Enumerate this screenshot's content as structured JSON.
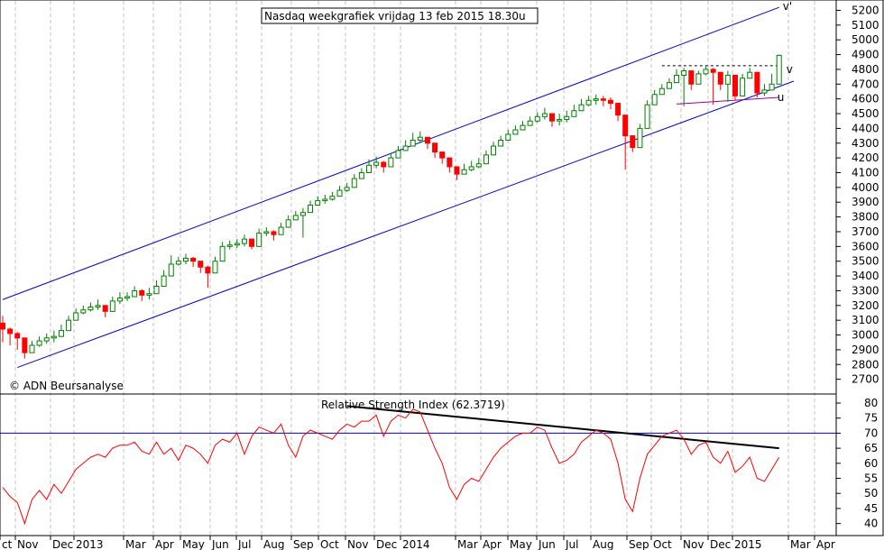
{
  "chart_data": [
    {
      "type": "candlestick",
      "title": "Nasdaq weekgrafiek vrijdag 13 feb 2015 18.30u",
      "credit": "© ADN Beursanalyse",
      "ylim": [
        2600,
        5270
      ],
      "y_ticks": [
        2700,
        2800,
        2900,
        3000,
        3100,
        3200,
        3300,
        3400,
        3500,
        3600,
        3700,
        3800,
        3900,
        4000,
        4100,
        4200,
        4300,
        4400,
        4500,
        4600,
        4700,
        4800,
        4900,
        5000,
        5100,
        5200
      ],
      "y_tick_labels": [
        "2700",
        "2800",
        "2900",
        "3000",
        "3100",
        "3200",
        "3300",
        "3400",
        "3500",
        "3600",
        "3700",
        "3800",
        "3900",
        "4000",
        "4100",
        "4200",
        "4300",
        "4400",
        "4500",
        "4600",
        "4700",
        "4800",
        "4900",
        "5000",
        "5100",
        "5200"
      ],
      "x_tick_labels": [
        "ct",
        "Nov",
        "Dec",
        "2013",
        "Mar",
        "Apr",
        "May",
        "Jun",
        "Jul",
        "Aug",
        "Sep",
        "Oct",
        "Nov",
        "Dec",
        "2014",
        "Mar",
        "Apr",
        "May",
        "Jun",
        "Jul",
        "Aug",
        "Sep",
        "Oct",
        "Nov",
        "Dec",
        "2015",
        "Mar",
        "Apr"
      ],
      "colors": {
        "up": "#008000",
        "down": "#ff0000",
        "channel": "#0000cc",
        "support_u": "#990099",
        "grid": "#c0c0c0"
      },
      "close_series": {
        "name": "Nasdaq",
        "values": [
          3040,
          3010,
          2980,
          2880,
          2930,
          2960,
          2980,
          2990,
          3030,
          3100,
          3150,
          3170,
          3190,
          3200,
          3160,
          3230,
          3250,
          3260,
          3300,
          3270,
          3280,
          3330,
          3400,
          3480,
          3500,
          3520,
          3500,
          3460,
          3420,
          3500,
          3600,
          3610,
          3620,
          3650,
          3600,
          3690,
          3700,
          3680,
          3730,
          3780,
          3810,
          3830,
          3880,
          3910,
          3920,
          3940,
          3980,
          4000,
          4060,
          4100,
          4150,
          4170,
          4140,
          4200,
          4250,
          4280,
          4320,
          4340,
          4300,
          4240,
          4200,
          4140,
          4090,
          4120,
          4140,
          4160,
          4220,
          4280,
          4320,
          4360,
          4390,
          4420,
          4450,
          4480,
          4500,
          4450,
          4460,
          4480,
          4520,
          4560,
          4590,
          4600,
          4590,
          4570,
          4490,
          4350,
          4270,
          4400,
          4560,
          4630,
          4670,
          4710,
          4760,
          4790,
          4700,
          4770,
          4800,
          4780,
          4700,
          4760,
          4620,
          4740,
          4780,
          4640,
          4660,
          4700,
          4895
        ],
        "lows": [
          2950,
          2930,
          2900,
          2840,
          2880,
          2920,
          2940,
          2950,
          2990,
          3060,
          3110,
          3140,
          3160,
          3170,
          3120,
          3200,
          3210,
          3230,
          3260,
          3230,
          3240,
          3300,
          3370,
          3440,
          3470,
          3480,
          3460,
          3420,
          3320,
          3450,
          3560,
          3580,
          3590,
          3600,
          3580,
          3650,
          3670,
          3640,
          3700,
          3740,
          3780,
          3660,
          3850,
          3880,
          3890,
          3910,
          3940,
          3970,
          4030,
          4070,
          4110,
          4130,
          4100,
          4160,
          4210,
          4250,
          4280,
          4300,
          4260,
          4200,
          4160,
          4100,
          4050,
          4090,
          4110,
          4130,
          4180,
          4240,
          4290,
          4330,
          4360,
          4390,
          4420,
          4440,
          4460,
          4410,
          4420,
          4440,
          4490,
          4520,
          4550,
          4560,
          4550,
          4530,
          4450,
          4120,
          4240,
          4370,
          4520,
          4600,
          4640,
          4670,
          4720,
          4550,
          4660,
          4730,
          4760,
          4560,
          4660,
          4580,
          4590,
          4700,
          4740,
          4610,
          4620,
          4670,
          4720
        ],
        "highs": [
          3130,
          3050,
          3020,
          2960,
          2960,
          2990,
          3010,
          3030,
          3070,
          3130,
          3180,
          3200,
          3220,
          3240,
          3200,
          3260,
          3290,
          3290,
          3330,
          3310,
          3320,
          3370,
          3440,
          3540,
          3530,
          3550,
          3530,
          3500,
          3470,
          3530,
          3630,
          3640,
          3650,
          3680,
          3640,
          3720,
          3730,
          3710,
          3760,
          3810,
          3840,
          3860,
          3910,
          3940,
          3950,
          3970,
          4010,
          4030,
          4090,
          4130,
          4190,
          4210,
          4180,
          4230,
          4280,
          4320,
          4370,
          4380,
          4340,
          4290,
          4240,
          4190,
          4140,
          4160,
          4180,
          4200,
          4250,
          4310,
          4350,
          4390,
          4420,
          4450,
          4480,
          4510,
          4540,
          4490,
          4500,
          4520,
          4560,
          4600,
          4620,
          4630,
          4620,
          4610,
          4540,
          4400,
          4320,
          4430,
          4590,
          4660,
          4700,
          4740,
          4800,
          4810,
          4790,
          4790,
          4820,
          4810,
          4760,
          4790,
          4680,
          4770,
          4810,
          4720,
          4700,
          4770,
          4900
        ]
      },
      "channel_upper": {
        "label": "v'",
        "x": [
          0,
          106
        ],
        "y": [
          3240,
          5220
        ]
      },
      "channel_lower": {
        "x": [
          2,
          108
        ],
        "y": [
          2780,
          4720
        ]
      },
      "resistance_line": {
        "label": "v",
        "x": [
          90,
          106
        ],
        "y": [
          4825,
          4825
        ]
      },
      "support_u": {
        "label": "u",
        "x": [
          92,
          106
        ],
        "y": [
          4565,
          4610
        ]
      }
    },
    {
      "type": "line",
      "title": "Relative Strength Index (62.3719)",
      "ylim": [
        36,
        83
      ],
      "y_ticks": [
        40,
        45,
        50,
        55,
        60,
        65,
        70,
        75,
        80
      ],
      "y_tick_labels": [
        "40",
        "45",
        "50",
        "55",
        "60",
        "65",
        "70",
        "75",
        "80"
      ],
      "reference_level": 70,
      "trendline": {
        "x": [
          47,
          106
        ],
        "y": [
          79,
          65
        ]
      },
      "series": [
        {
          "name": "RSI",
          "values": [
            52,
            49,
            47,
            40,
            48,
            51,
            48,
            53,
            50,
            54,
            58,
            60,
            62,
            63,
            62,
            65,
            66,
            66,
            67,
            64,
            63,
            67,
            63,
            65,
            61,
            66,
            65,
            63,
            60,
            66,
            68,
            67,
            70,
            63,
            69,
            72,
            71,
            70,
            73,
            66,
            62,
            69,
            71,
            70,
            69,
            68,
            71,
            73,
            72,
            74,
            74,
            76,
            69,
            74,
            76,
            75,
            78,
            77,
            71,
            65,
            60,
            52,
            48,
            53,
            55,
            54,
            58,
            62,
            65,
            67,
            69,
            70,
            70,
            72,
            71,
            65,
            60,
            61,
            63,
            67,
            69,
            71,
            70,
            68,
            60,
            48,
            44,
            55,
            63,
            66,
            69,
            70,
            71,
            68,
            63,
            66,
            67,
            62,
            60,
            64,
            57,
            59,
            62,
            55,
            54,
            58,
            62
          ]
        }
      ]
    }
  ]
}
